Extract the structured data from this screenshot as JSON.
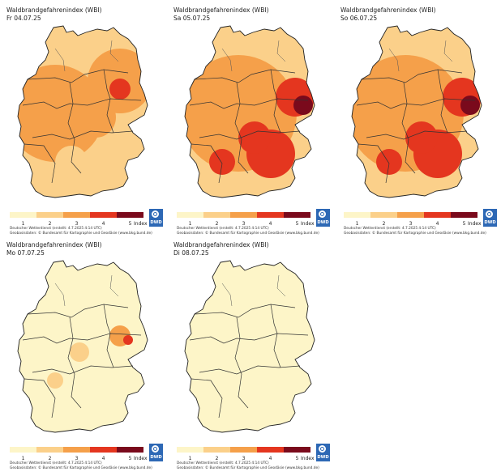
{
  "panels": [
    {
      "title": "Waldbrandgefahrenindex (WBI)",
      "date": "Fr 04.07.25",
      "level": 3
    },
    {
      "title": "Waldbrandgefahrenindex (WBI)",
      "date": "Sa 05.07.25",
      "level": 4
    },
    {
      "title": "Waldbrandgefahrenindex (WBI)",
      "date": "So 06.07.25",
      "level": 4
    },
    {
      "title": "Waldbrandgefahrenindex (WBI)",
      "date": "Mo 07.07.25",
      "level": 2
    },
    {
      "title": "Waldbrandgefahrenindex (WBI)",
      "date": "Di 08.07.25",
      "level": 1
    }
  ],
  "legend": {
    "values": [
      "1",
      "2",
      "3",
      "4",
      "5"
    ],
    "unit": "Index",
    "colors": [
      "#fdf5c8",
      "#fbd08a",
      "#f5a04a",
      "#e4361f",
      "#7a0a1c"
    ]
  },
  "credits": {
    "line1": "Deutscher Wetterdienst  (erstellt: 4.7.2025 4:14 UTC)",
    "line2": "Geobasisdaten: © Bundesamt für Kartographie und Geodäsie (www.bkg.bund.de)"
  },
  "logo": {
    "text": "DWD",
    "color": "#2d68b5"
  }
}
